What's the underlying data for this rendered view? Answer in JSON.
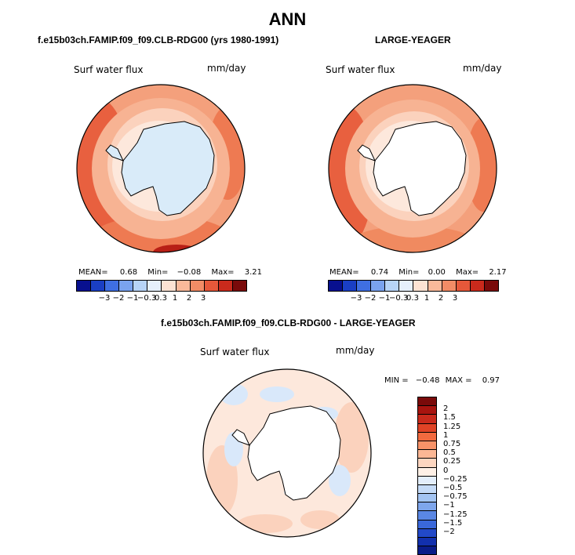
{
  "figure": {
    "title": "ANN"
  },
  "panels": {
    "left": {
      "title": "f.e15b03ch.FAMIP.f09_f09.CLB-RDG00 (yrs 1980-1991)",
      "var_label": "Surf water flux",
      "units": "mm/day",
      "mean_label": "MEAN=",
      "mean_value": "0.68",
      "min_label": "Min=",
      "min_value": "−0.08",
      "max_label": "Max=",
      "max_value": "3.21"
    },
    "right": {
      "title": "LARGE-YEAGER",
      "var_label": "Surf water flux",
      "units": "mm/day",
      "mean_label": "MEAN=",
      "mean_value": "0.74",
      "min_label": "Min=",
      "min_value": "0.00",
      "max_label": "Max=",
      "max_value": "2.17"
    },
    "diff": {
      "title": "f.e15b03ch.FAMIP.f09_f09.CLB-RDG00 - LARGE-YEAGER",
      "var_label": "Surf water flux",
      "units": "mm/day",
      "min_label": "MIN =",
      "min_value": "−0.48",
      "max_label": "MAX =",
      "max_value": "0.97"
    }
  },
  "colorbar_main": {
    "colors": [
      "#08108f",
      "#1a3fc4",
      "#3f6fe2",
      "#7aa3ef",
      "#b7d4f7",
      "#e6f0fb",
      "#fde3d3",
      "#f9b99a",
      "#f28c66",
      "#e6583a",
      "#c92a1c",
      "#7a0a0a"
    ],
    "tick_labels": [
      "−3",
      "−2",
      "−1",
      "−0.3",
      "0.3",
      "1",
      "2",
      "3"
    ]
  },
  "colorbar_diff": {
    "colors": [
      "#7a0a0a",
      "#a8140f",
      "#c92a1c",
      "#e04326",
      "#f26a3f",
      "#f79268",
      "#fbb795",
      "#fdd6c0",
      "#fef0e6",
      "#e3eefb",
      "#c5dbf7",
      "#a3c4f2",
      "#7ea6ec",
      "#5a87e4",
      "#3a68da",
      "#2249c8",
      "#1230ad",
      "#0a1c88"
    ],
    "tick_labels": [
      "2",
      "1.5",
      "1.25",
      "1",
      "0.75",
      "0.5",
      "0.25",
      "0",
      "−0.25",
      "−0.5",
      "−0.75",
      "−1",
      "−1.25",
      "−1.5",
      "−2"
    ]
  }
}
